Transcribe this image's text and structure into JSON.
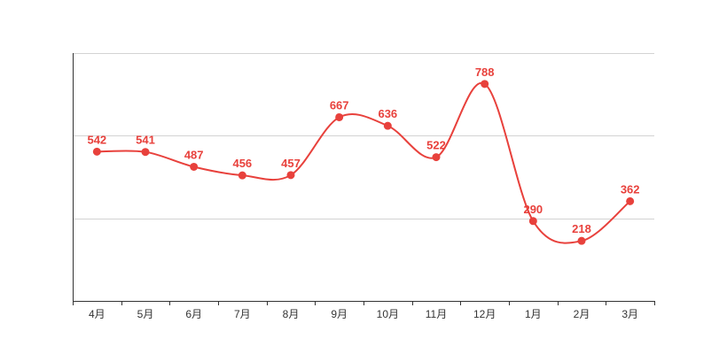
{
  "chart_data": {
    "type": "line",
    "categories": [
      "4月",
      "5月",
      "6月",
      "7月",
      "8月",
      "9月",
      "10月",
      "11月",
      "12月",
      "1月",
      "2月",
      "3月"
    ],
    "series": [
      {
        "values": [
          542,
          541,
          487,
          456,
          457,
          667,
          636,
          522,
          788,
          290,
          218,
          362
        ]
      }
    ],
    "ylim": [
      0,
      900
    ],
    "y_gridlines": [
      300,
      600,
      900
    ],
    "y_tick_labels_shown": false,
    "grid": true,
    "data_labels": true,
    "smooth": true,
    "color": "#e8413c",
    "title": "",
    "xlabel": "",
    "ylabel": ""
  }
}
